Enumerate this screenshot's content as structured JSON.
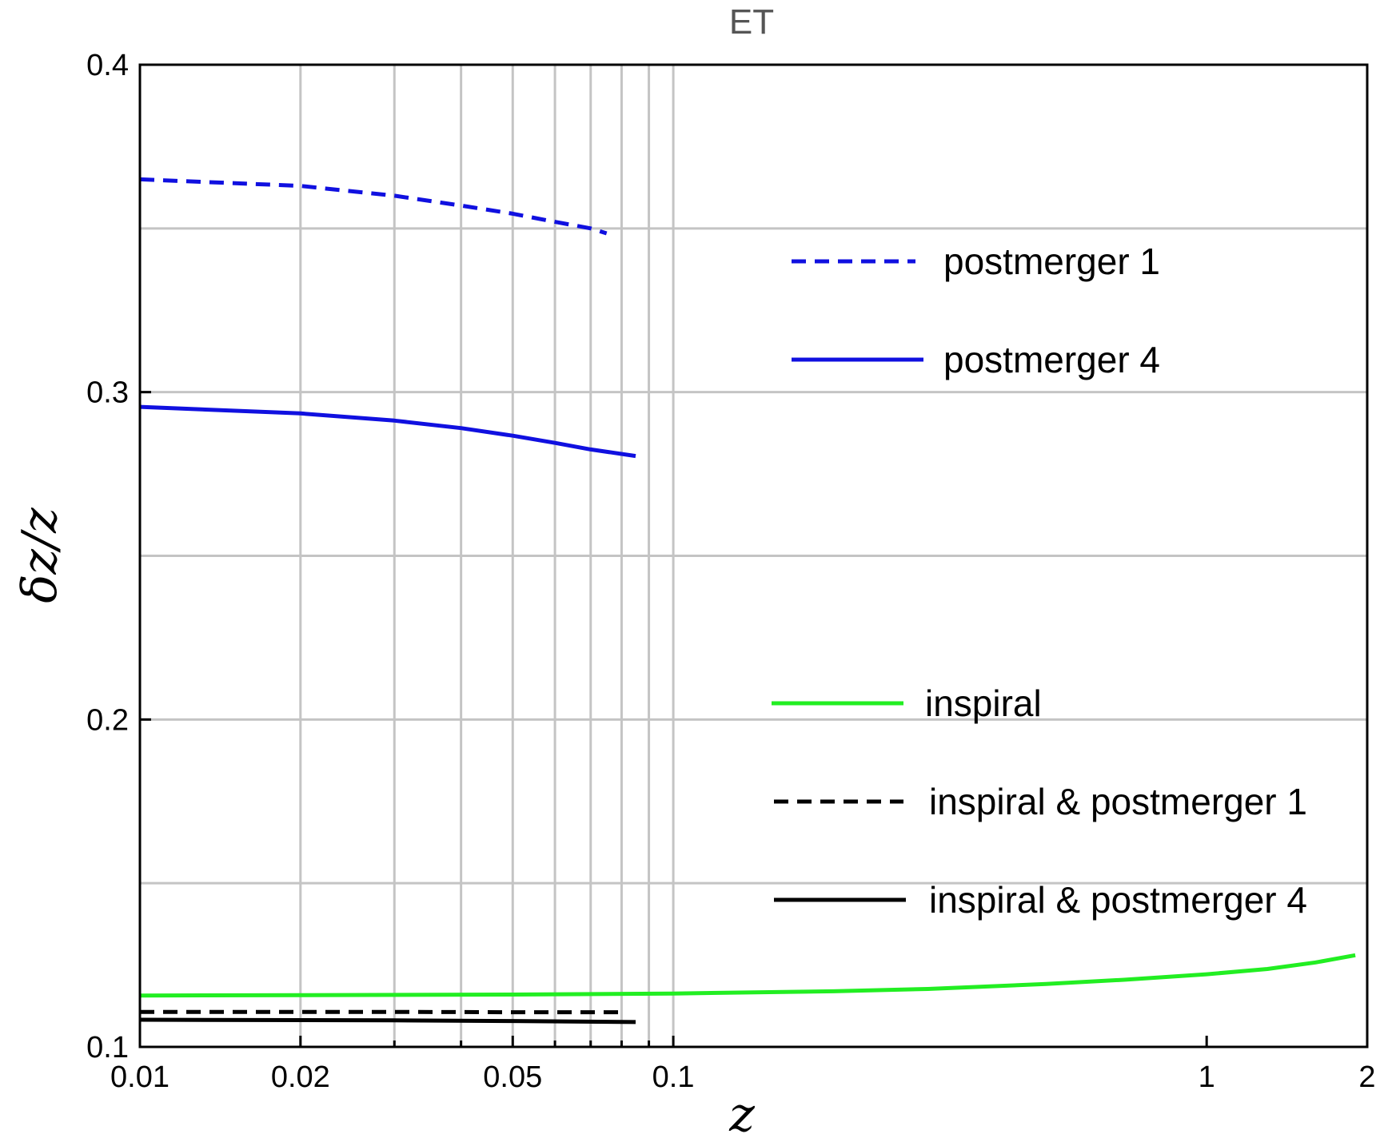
{
  "chart_data": {
    "type": "line",
    "title": "ET",
    "xlabel": "z",
    "ylabel": "δz/z",
    "xscale": "log",
    "xlim": [
      0.01,
      2
    ],
    "ylim": [
      0.1,
      0.4
    ],
    "grid": true,
    "x_ticks": [
      {
        "value": 0.01,
        "label": "0.01"
      },
      {
        "value": 0.02,
        "label": "0.02"
      },
      {
        "value": 0.05,
        "label": "0.05"
      },
      {
        "value": 0.1,
        "label": "0.1"
      },
      {
        "value": 1,
        "label": "1"
      },
      {
        "value": 2,
        "label": "2"
      }
    ],
    "x_gridlines": [
      0.02,
      0.03,
      0.04,
      0.05,
      0.06,
      0.07,
      0.08,
      0.09,
      0.1
    ],
    "x_minor_ticks": [
      0.03,
      0.04,
      0.06,
      0.07,
      0.08,
      0.09
    ],
    "y_ticks": [
      {
        "value": 0.1,
        "label": "0.1"
      },
      {
        "value": 0.2,
        "label": "0.2"
      },
      {
        "value": 0.3,
        "label": "0.3"
      },
      {
        "value": 0.4,
        "label": "0.4"
      }
    ],
    "y_gridlines": [
      0.15,
      0.2,
      0.25,
      0.3,
      0.35
    ],
    "series": [
      {
        "name": "postmerger 1",
        "color": "#1010e0",
        "dash": "dashed",
        "x": [
          0.01,
          0.02,
          0.03,
          0.04,
          0.05,
          0.06,
          0.07,
          0.075
        ],
        "y": [
          0.365,
          0.363,
          0.36,
          0.357,
          0.3545,
          0.352,
          0.35,
          0.3485
        ]
      },
      {
        "name": "postmerger 4",
        "color": "#1010e0",
        "dash": "solid",
        "x": [
          0.01,
          0.02,
          0.03,
          0.04,
          0.05,
          0.06,
          0.07,
          0.085
        ],
        "y": [
          0.2955,
          0.2935,
          0.2913,
          0.289,
          0.2867,
          0.2845,
          0.2825,
          0.2805
        ]
      },
      {
        "name": "inspiral",
        "color": "#22ee22",
        "dash": "solid",
        "x": [
          0.01,
          0.02,
          0.05,
          0.1,
          0.2,
          0.3,
          0.5,
          0.7,
          1.0,
          1.3,
          1.6,
          1.9
        ],
        "y": [
          0.1157,
          0.1158,
          0.116,
          0.1163,
          0.117,
          0.1177,
          0.1192,
          0.1205,
          0.1222,
          0.1238,
          0.1258,
          0.128
        ]
      },
      {
        "name": "inspiral & postmerger 1",
        "color": "#000000",
        "dash": "dashed",
        "x": [
          0.01,
          0.03,
          0.05,
          0.08
        ],
        "y": [
          0.1107,
          0.1107,
          0.1106,
          0.1106
        ]
      },
      {
        "name": "inspiral & postmerger 4",
        "color": "#000000",
        "dash": "solid",
        "x": [
          0.01,
          0.03,
          0.05,
          0.085
        ],
        "y": [
          0.1083,
          0.1081,
          0.1079,
          0.1076
        ]
      }
    ],
    "legend": [
      {
        "label": "postmerger 1",
        "color": "#1010e0",
        "dash": "dashed"
      },
      {
        "label": "postmerger 4",
        "color": "#1010e0",
        "dash": "solid"
      },
      {
        "label": "inspiral",
        "color": "#22ee22",
        "dash": "solid"
      },
      {
        "label": "inspiral & postmerger 1",
        "color": "#000000",
        "dash": "dashed"
      },
      {
        "label": "inspiral & postmerger 4",
        "color": "#000000",
        "dash": "solid"
      }
    ],
    "legend_position": "right"
  }
}
